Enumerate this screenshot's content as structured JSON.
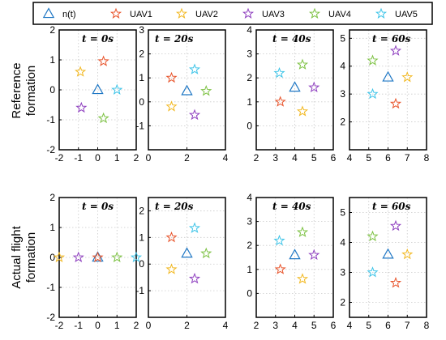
{
  "rows": [
    {
      "label_line1": "Reference",
      "label_line2": "formation"
    },
    {
      "label_line1": "Actual flight",
      "label_line2": "formation"
    }
  ],
  "legend": [
    {
      "name": "n(t)",
      "marker": "triangle",
      "color": "#1f77c4"
    },
    {
      "name": "UAV1",
      "marker": "star",
      "color": "#e8532a"
    },
    {
      "name": "UAV2",
      "marker": "star",
      "color": "#f2b820"
    },
    {
      "name": "UAV3",
      "marker": "star",
      "color": "#8e3fbf"
    },
    {
      "name": "UAV4",
      "marker": "star",
      "color": "#7cc142"
    },
    {
      "name": "UAV5",
      "marker": "star",
      "color": "#3ec4e8"
    }
  ],
  "chart_data": [
    {
      "type": "scatter",
      "title": "t = 0s",
      "xlim": [
        -2,
        2
      ],
      "ylim": [
        -2,
        2
      ],
      "xticks": [
        -2,
        -1,
        0,
        1,
        2
      ],
      "yticks": [
        -2,
        -1,
        0,
        1,
        2
      ],
      "grid": true,
      "points": {
        "n(t)": [
          0,
          0
        ],
        "UAV1": [
          0.3,
          0.95
        ],
        "UAV2": [
          -0.9,
          0.6
        ],
        "UAV3": [
          -0.85,
          -0.6
        ],
        "UAV4": [
          0.3,
          -0.95
        ],
        "UAV5": [
          1.0,
          0
        ]
      }
    },
    {
      "type": "scatter",
      "title": "t = 20s",
      "xlim": [
        0,
        4
      ],
      "ylim": [
        -2,
        3
      ],
      "xticks": [
        0,
        2,
        4
      ],
      "yticks": [
        -1,
        0,
        1,
        2,
        3
      ],
      "grid": true,
      "points": {
        "n(t)": [
          2,
          0.45
        ],
        "UAV1": [
          1.2,
          1.0
        ],
        "UAV2": [
          1.2,
          -0.2
        ],
        "UAV3": [
          2.4,
          -0.55
        ],
        "UAV4": [
          3.0,
          0.45
        ],
        "UAV5": [
          2.4,
          1.35
        ]
      }
    },
    {
      "type": "scatter",
      "title": "t = 40s",
      "xlim": [
        2,
        6
      ],
      "ylim": [
        -1,
        4
      ],
      "xticks": [
        2,
        3,
        4,
        5,
        6
      ],
      "yticks": [
        0,
        1,
        2,
        3,
        4
      ],
      "grid": true,
      "points": {
        "n(t)": [
          4,
          1.6
        ],
        "UAV1": [
          3.25,
          1.0
        ],
        "UAV2": [
          4.4,
          0.6
        ],
        "UAV3": [
          5.0,
          1.6
        ],
        "UAV4": [
          4.4,
          2.55
        ],
        "UAV5": [
          3.2,
          2.2
        ]
      }
    },
    {
      "type": "scatter",
      "title": "t = 60s",
      "xlim": [
        4,
        8
      ],
      "ylim": [
        1,
        5.3
      ],
      "xticks": [
        4,
        5,
        6,
        7,
        8
      ],
      "yticks": [
        2,
        3,
        4,
        5
      ],
      "grid": true,
      "points": {
        "n(t)": [
          6,
          3.6
        ],
        "UAV1": [
          6.4,
          2.65
        ],
        "UAV2": [
          7.0,
          3.6
        ],
        "UAV3": [
          6.4,
          4.55
        ],
        "UAV4": [
          5.2,
          4.2
        ],
        "UAV5": [
          5.2,
          3.0
        ]
      }
    },
    {
      "type": "scatter",
      "title": "t = 0s",
      "xlim": [
        -2,
        2
      ],
      "ylim": [
        -2,
        2
      ],
      "xticks": [
        -2,
        -1,
        0,
        1,
        2
      ],
      "yticks": [
        -2,
        -1,
        0,
        1,
        2
      ],
      "grid": true,
      "points": {
        "n(t)": [
          0,
          0
        ],
        "UAV1": [
          0,
          0
        ],
        "UAV2": [
          -2,
          0
        ],
        "UAV3": [
          -1,
          0
        ],
        "UAV4": [
          1,
          0
        ],
        "UAV5": [
          2,
          0
        ]
      }
    },
    {
      "type": "scatter",
      "title": "t = 20s",
      "xlim": [
        0,
        4
      ],
      "ylim": [
        -2,
        2.5
      ],
      "xticks": [
        0,
        2,
        4
      ],
      "yticks": [
        -1,
        0,
        1,
        2
      ],
      "grid": true,
      "points": {
        "n(t)": [
          2,
          0.4
        ],
        "UAV1": [
          1.2,
          1.0
        ],
        "UAV2": [
          1.2,
          -0.2
        ],
        "UAV3": [
          2.4,
          -0.55
        ],
        "UAV4": [
          3.0,
          0.4
        ],
        "UAV5": [
          2.4,
          1.35
        ]
      }
    },
    {
      "type": "scatter",
      "title": "t = 40s",
      "xlim": [
        2,
        6
      ],
      "ylim": [
        -1,
        4
      ],
      "xticks": [
        2,
        3,
        4,
        5,
        6
      ],
      "yticks": [
        0,
        1,
        2,
        3,
        4
      ],
      "grid": true,
      "points": {
        "n(t)": [
          4,
          1.6
        ],
        "UAV1": [
          3.25,
          1.0
        ],
        "UAV2": [
          4.4,
          0.6
        ],
        "UAV3": [
          5.0,
          1.6
        ],
        "UAV4": [
          4.4,
          2.55
        ],
        "UAV5": [
          3.2,
          2.2
        ]
      }
    },
    {
      "type": "scatter",
      "title": "t = 60s",
      "xlim": [
        4,
        8
      ],
      "ylim": [
        1.5,
        5.5
      ],
      "xticks": [
        4,
        5,
        6,
        7,
        8
      ],
      "yticks": [
        2,
        3,
        4,
        5
      ],
      "grid": true,
      "points": {
        "n(t)": [
          6,
          3.6
        ],
        "UAV1": [
          6.4,
          2.65
        ],
        "UAV2": [
          7.0,
          3.6
        ],
        "UAV3": [
          6.4,
          4.55
        ],
        "UAV4": [
          5.2,
          4.2
        ],
        "UAV5": [
          5.2,
          3.0
        ]
      }
    }
  ]
}
